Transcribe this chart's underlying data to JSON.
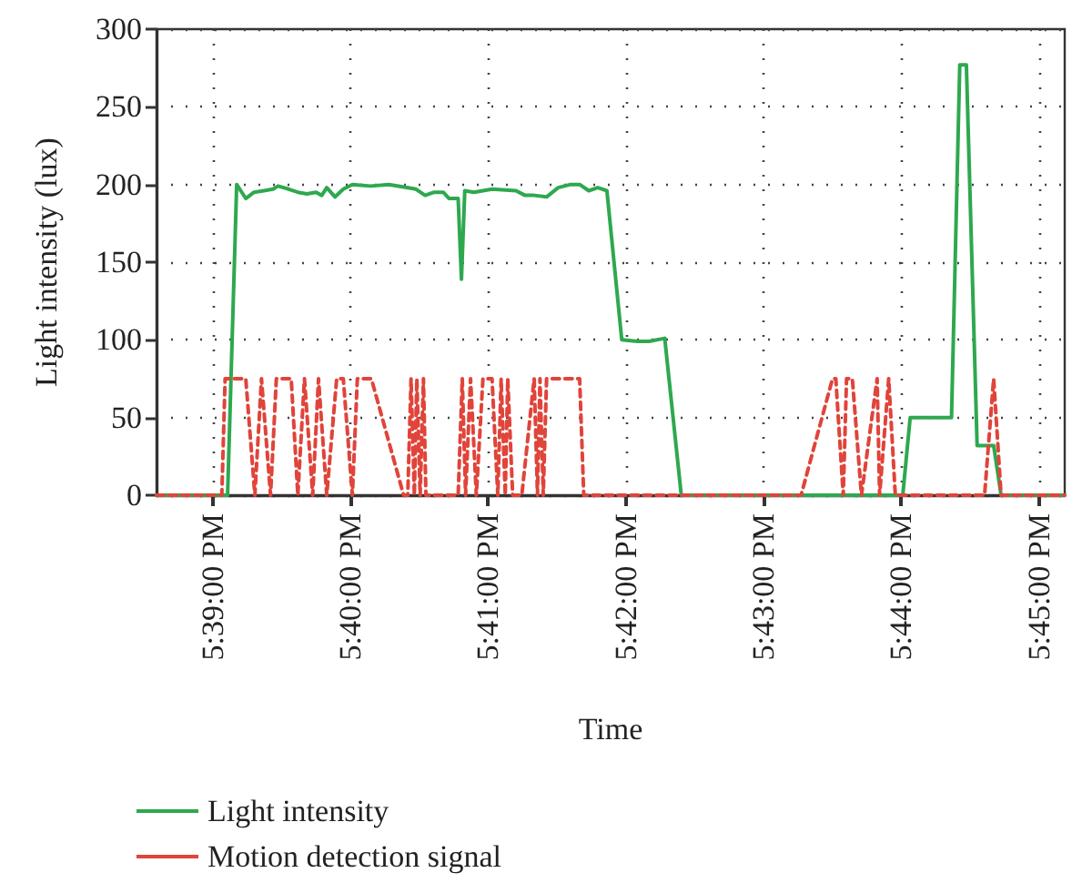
{
  "chart_data": {
    "type": "line",
    "xlabel": "Time",
    "ylabel": "Light intensity (lux)",
    "xlim": [
      17.6432,
      17.7531
    ],
    "ylim": [
      0,
      300
    ],
    "xticks": [
      {
        "value": 17.65,
        "label": "5:39:00 PM"
      },
      {
        "value": 17.6667,
        "label": "5:40:00 PM"
      },
      {
        "value": 17.6833,
        "label": "5:41:00 PM"
      },
      {
        "value": 17.7,
        "label": "5:42:00 PM"
      },
      {
        "value": 17.7167,
        "label": "5:43:00 PM"
      },
      {
        "value": 17.7333,
        "label": "5:44:00 PM"
      },
      {
        "value": 17.75,
        "label": "5:45:00 PM"
      }
    ],
    "yticks": [
      0,
      50,
      100,
      150,
      200,
      250,
      300
    ],
    "grid": true,
    "legend": "bottom left",
    "marker": "none",
    "series": [
      {
        "name": "Light intensity",
        "color": "#2ea84f",
        "line_style": "solid",
        "x": [
          17.6432,
          17.6518,
          17.6529,
          17.654,
          17.655,
          17.6562,
          17.6573,
          17.6579,
          17.6592,
          17.6603,
          17.6614,
          17.6625,
          17.6632,
          17.6638,
          17.6648,
          17.6658,
          17.6669,
          17.6691,
          17.6713,
          17.6735,
          17.6746,
          17.6757,
          17.6768,
          17.6779,
          17.6786,
          17.6797,
          17.6801,
          17.6805,
          17.6816,
          17.6838,
          17.6867,
          17.6878,
          17.6889,
          17.6904,
          17.6918,
          17.6933,
          17.6944,
          17.6955,
          17.6966,
          17.6977,
          17.6995,
          17.7014,
          17.7028,
          17.7047,
          17.7067,
          17.7335,
          17.7344,
          17.7394,
          17.7404,
          17.7412,
          17.7425,
          17.7445,
          17.7454,
          17.7531
        ],
        "values": [
          0,
          0,
          200,
          191,
          195,
          196,
          197,
          199,
          197,
          195,
          194,
          195,
          193,
          198,
          192,
          197,
          200,
          199,
          200,
          198,
          197,
          193,
          195,
          195,
          191,
          191,
          139,
          196,
          195,
          197,
          196,
          193,
          193,
          192,
          198,
          200,
          200,
          196,
          198,
          196,
          100,
          99,
          99,
          101,
          0,
          0,
          50,
          50,
          277,
          277,
          32,
          32,
          0,
          0
        ]
      },
      {
        "name": "Motion detection signal",
        "color": "#e0443a",
        "line_style": "dashed",
        "x": [
          17.6432,
          17.6511,
          17.6515,
          17.654,
          17.6551,
          17.6559,
          17.657,
          17.6577,
          17.6595,
          17.6603,
          17.6611,
          17.6621,
          17.6628,
          17.6638,
          17.665,
          17.6658,
          17.6669,
          17.6675,
          17.6692,
          17.6731,
          17.6736,
          17.674,
          17.6744,
          17.6747,
          17.6751,
          17.6755,
          17.6758,
          17.6797,
          17.6802,
          17.6806,
          17.6812,
          17.6819,
          17.6827,
          17.6838,
          17.6845,
          17.6849,
          17.6854,
          17.6857,
          17.6863,
          17.6874,
          17.6889,
          17.6893,
          17.6896,
          17.69,
          17.6904,
          17.6944,
          17.6949,
          17.7212,
          17.725,
          17.7254,
          17.7263,
          17.7267,
          17.7274,
          17.7285,
          17.7304,
          17.7307,
          17.7318,
          17.7326,
          17.7434,
          17.7445,
          17.7454,
          17.7531
        ],
        "values": [
          0,
          0,
          75,
          75,
          0,
          75,
          0,
          75,
          75,
          0,
          75,
          0,
          75,
          0,
          75,
          75,
          0,
          75,
          75,
          0,
          0,
          75,
          0,
          75,
          0,
          75,
          0,
          0,
          75,
          0,
          75,
          0,
          75,
          75,
          0,
          75,
          0,
          75,
          0,
          0,
          75,
          0,
          75,
          0,
          75,
          75,
          0,
          0,
          75,
          75,
          0,
          75,
          75,
          0,
          75,
          0,
          75,
          0,
          0,
          75,
          0,
          0
        ]
      }
    ]
  }
}
